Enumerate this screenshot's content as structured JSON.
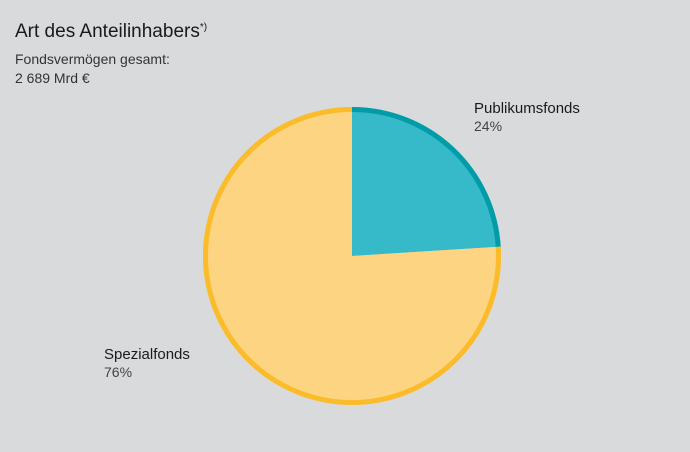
{
  "title": "Art des Anteilinhabers",
  "title_footnote": "*)",
  "subtitle_line1": "Fondsvermögen gesamt:",
  "subtitle_line2": "2 689 Mrd €",
  "colors": {
    "publikum_fill": "#36b9c8",
    "publikum_stroke": "#009ca8",
    "spezial_fill": "#fdd481",
    "spezial_stroke": "#fbbc2b",
    "background": "#d9dadb"
  },
  "chart_data": {
    "type": "pie",
    "title": "Art des Anteilinhabers",
    "slices": [
      {
        "name": "Publikumsfonds",
        "value": 24,
        "label": "24%"
      },
      {
        "name": "Spezialfonds",
        "value": 76,
        "label": "76%"
      }
    ],
    "legend": "none"
  }
}
